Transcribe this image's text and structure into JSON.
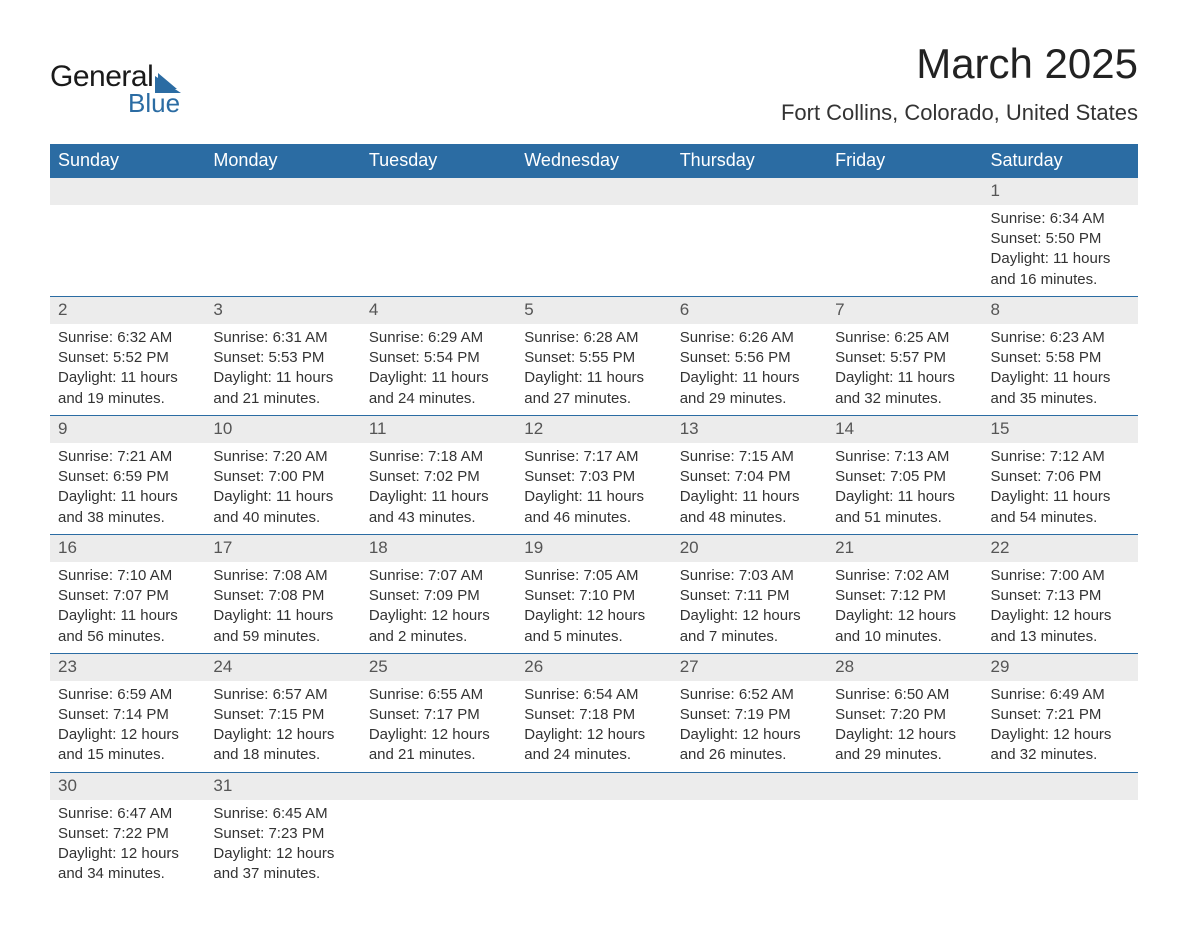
{
  "logo": {
    "main": "General",
    "sub": "Blue",
    "sail_color": "#2b6ca3"
  },
  "title": "March 2025",
  "location": "Fort Collins, Colorado, United States",
  "colors": {
    "header_bg": "#2b6ca3",
    "header_text": "#ffffff",
    "daynum_bg": "#ececec",
    "border": "#2b6ca3",
    "body_text": "#333333"
  },
  "fonts": {
    "title_size_pt": 32,
    "location_size_pt": 17,
    "header_size_pt": 14,
    "cell_size_pt": 11
  },
  "day_headers": [
    "Sunday",
    "Monday",
    "Tuesday",
    "Wednesday",
    "Thursday",
    "Friday",
    "Saturday"
  ],
  "first_weekday_index": 6,
  "days_in_month": 31,
  "days": {
    "1": {
      "sunrise": "6:34 AM",
      "sunset": "5:50 PM",
      "daylight": "11 hours and 16 minutes."
    },
    "2": {
      "sunrise": "6:32 AM",
      "sunset": "5:52 PM",
      "daylight": "11 hours and 19 minutes."
    },
    "3": {
      "sunrise": "6:31 AM",
      "sunset": "5:53 PM",
      "daylight": "11 hours and 21 minutes."
    },
    "4": {
      "sunrise": "6:29 AM",
      "sunset": "5:54 PM",
      "daylight": "11 hours and 24 minutes."
    },
    "5": {
      "sunrise": "6:28 AM",
      "sunset": "5:55 PM",
      "daylight": "11 hours and 27 minutes."
    },
    "6": {
      "sunrise": "6:26 AM",
      "sunset": "5:56 PM",
      "daylight": "11 hours and 29 minutes."
    },
    "7": {
      "sunrise": "6:25 AM",
      "sunset": "5:57 PM",
      "daylight": "11 hours and 32 minutes."
    },
    "8": {
      "sunrise": "6:23 AM",
      "sunset": "5:58 PM",
      "daylight": "11 hours and 35 minutes."
    },
    "9": {
      "sunrise": "7:21 AM",
      "sunset": "6:59 PM",
      "daylight": "11 hours and 38 minutes."
    },
    "10": {
      "sunrise": "7:20 AM",
      "sunset": "7:00 PM",
      "daylight": "11 hours and 40 minutes."
    },
    "11": {
      "sunrise": "7:18 AM",
      "sunset": "7:02 PM",
      "daylight": "11 hours and 43 minutes."
    },
    "12": {
      "sunrise": "7:17 AM",
      "sunset": "7:03 PM",
      "daylight": "11 hours and 46 minutes."
    },
    "13": {
      "sunrise": "7:15 AM",
      "sunset": "7:04 PM",
      "daylight": "11 hours and 48 minutes."
    },
    "14": {
      "sunrise": "7:13 AM",
      "sunset": "7:05 PM",
      "daylight": "11 hours and 51 minutes."
    },
    "15": {
      "sunrise": "7:12 AM",
      "sunset": "7:06 PM",
      "daylight": "11 hours and 54 minutes."
    },
    "16": {
      "sunrise": "7:10 AM",
      "sunset": "7:07 PM",
      "daylight": "11 hours and 56 minutes."
    },
    "17": {
      "sunrise": "7:08 AM",
      "sunset": "7:08 PM",
      "daylight": "11 hours and 59 minutes."
    },
    "18": {
      "sunrise": "7:07 AM",
      "sunset": "7:09 PM",
      "daylight": "12 hours and 2 minutes."
    },
    "19": {
      "sunrise": "7:05 AM",
      "sunset": "7:10 PM",
      "daylight": "12 hours and 5 minutes."
    },
    "20": {
      "sunrise": "7:03 AM",
      "sunset": "7:11 PM",
      "daylight": "12 hours and 7 minutes."
    },
    "21": {
      "sunrise": "7:02 AM",
      "sunset": "7:12 PM",
      "daylight": "12 hours and 10 minutes."
    },
    "22": {
      "sunrise": "7:00 AM",
      "sunset": "7:13 PM",
      "daylight": "12 hours and 13 minutes."
    },
    "23": {
      "sunrise": "6:59 AM",
      "sunset": "7:14 PM",
      "daylight": "12 hours and 15 minutes."
    },
    "24": {
      "sunrise": "6:57 AM",
      "sunset": "7:15 PM",
      "daylight": "12 hours and 18 minutes."
    },
    "25": {
      "sunrise": "6:55 AM",
      "sunset": "7:17 PM",
      "daylight": "12 hours and 21 minutes."
    },
    "26": {
      "sunrise": "6:54 AM",
      "sunset": "7:18 PM",
      "daylight": "12 hours and 24 minutes."
    },
    "27": {
      "sunrise": "6:52 AM",
      "sunset": "7:19 PM",
      "daylight": "12 hours and 26 minutes."
    },
    "28": {
      "sunrise": "6:50 AM",
      "sunset": "7:20 PM",
      "daylight": "12 hours and 29 minutes."
    },
    "29": {
      "sunrise": "6:49 AM",
      "sunset": "7:21 PM",
      "daylight": "12 hours and 32 minutes."
    },
    "30": {
      "sunrise": "6:47 AM",
      "sunset": "7:22 PM",
      "daylight": "12 hours and 34 minutes."
    },
    "31": {
      "sunrise": "6:45 AM",
      "sunset": "7:23 PM",
      "daylight": "12 hours and 37 minutes."
    }
  },
  "labels": {
    "sunrise": "Sunrise: ",
    "sunset": "Sunset: ",
    "daylight": "Daylight: "
  }
}
